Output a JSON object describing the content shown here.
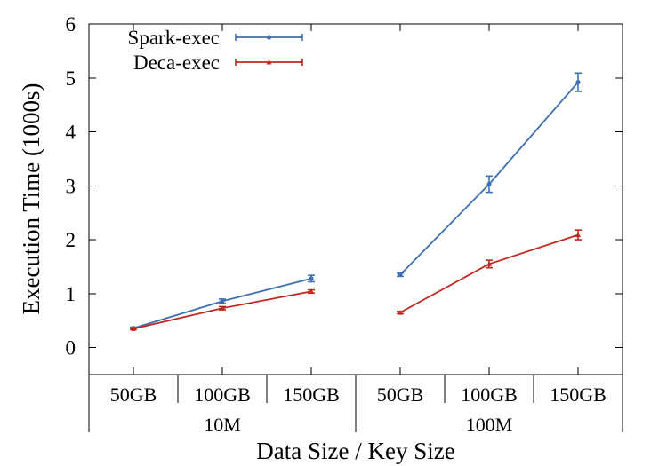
{
  "chart_data": {
    "type": "line",
    "ylabel": "Execution Time (1000s)",
    "xlabel": "Data Size / Key Size",
    "ylim": [
      -0.5,
      6
    ],
    "yticks": [
      0,
      1,
      2,
      3,
      4,
      5,
      6
    ],
    "legend_position": "top-left",
    "groups": [
      {
        "label": "10M",
        "categories": [
          "50GB",
          "100GB",
          "150GB"
        ]
      },
      {
        "label": "100M",
        "categories": [
          "50GB",
          "100GB",
          "150GB"
        ]
      }
    ],
    "series": [
      {
        "name": "Spark-exec",
        "color": "#3e6fb0",
        "marker": "circle",
        "segments": [
          {
            "group": 0,
            "values": [
              0.36,
              0.86,
              1.28
            ],
            "errors": [
              0.02,
              0.04,
              0.06
            ]
          },
          {
            "group": 1,
            "values": [
              1.35,
              3.03,
              4.92
            ],
            "errors": [
              0.03,
              0.15,
              0.17
            ]
          }
        ]
      },
      {
        "name": "Deca-exec",
        "color": "#c0281d",
        "marker": "triangle",
        "segments": [
          {
            "group": 0,
            "values": [
              0.35,
              0.73,
              1.04
            ],
            "errors": [
              0.01,
              0.03,
              0.03
            ]
          },
          {
            "group": 1,
            "values": [
              0.65,
              1.55,
              2.09
            ],
            "errors": [
              0.02,
              0.07,
              0.09
            ]
          }
        ]
      }
    ]
  }
}
